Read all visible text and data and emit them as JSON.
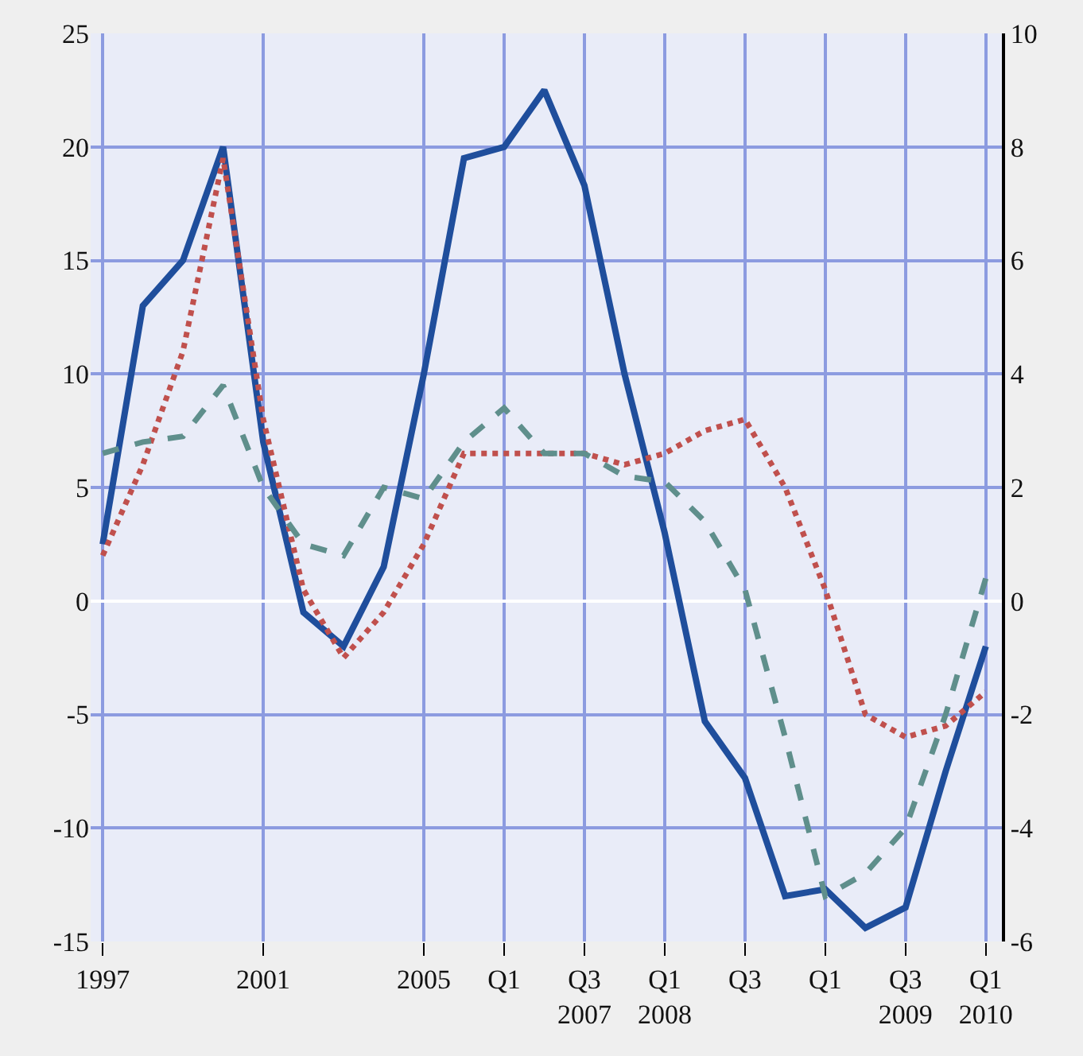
{
  "chart_data": {
    "type": "line",
    "categories": [
      "1997",
      null,
      null,
      null,
      "2001",
      null,
      null,
      null,
      "2005",
      null,
      "Q1",
      null,
      "Q3\n2007",
      null,
      "Q1\n2008",
      null,
      "Q3",
      null,
      "Q1",
      null,
      "Q3\n2009",
      null,
      "Q1\n2010"
    ],
    "ylim": [
      -15,
      25
    ],
    "yticks": [
      -15,
      -10,
      -5,
      0,
      5,
      10,
      15,
      20,
      25
    ],
    "y2lim": [
      -6,
      10
    ],
    "y2ticks": [
      -6,
      -4,
      -2,
      0,
      2,
      4,
      6,
      8,
      10
    ],
    "grid": true,
    "marker": "none",
    "series": [
      {
        "color": "#1f4e9c",
        "line_style": "solid",
        "values": [
          2.5,
          13,
          15,
          20,
          7,
          -0.5,
          -2,
          1.5,
          10,
          19.5,
          20,
          22.5,
          18.3,
          10,
          3,
          -5.3,
          -7.8,
          -13,
          -12.7,
          -14.4,
          -13.5,
          -7.5,
          -2
        ]
      },
      {
        "color": "#c0504d",
        "line_style": "dotted",
        "values": [
          2,
          6,
          11,
          19.5,
          8,
          0.5,
          -2.5,
          -0.5,
          2.5,
          6.5,
          6.5,
          6.5,
          6.5,
          6,
          6.5,
          7.5,
          8,
          5,
          0.5,
          -5,
          -6,
          -5.5,
          -4
        ]
      },
      {
        "color": "#5f8f8c",
        "line_style": "dashed",
        "axis": "y2",
        "values": [
          2.6,
          2.8,
          2.9,
          3.8,
          2,
          1,
          0.8,
          2,
          1.8,
          2.8,
          3.4,
          2.6,
          2.6,
          2.2,
          2.1,
          1.4,
          0.2,
          -2.4,
          -5.2,
          -4.8,
          -4,
          -2,
          0.4
        ]
      }
    ]
  }
}
